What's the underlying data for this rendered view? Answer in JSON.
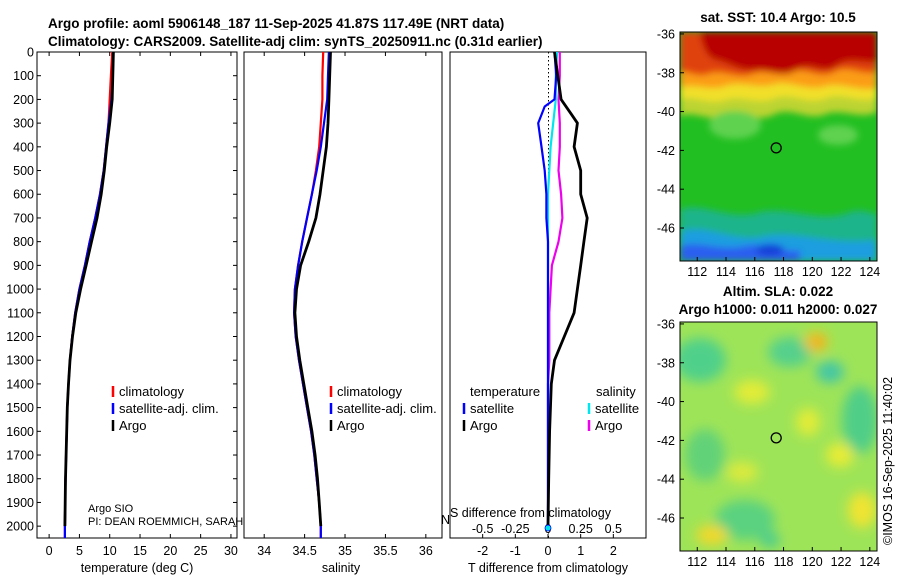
{
  "header": {
    "title_line1": "Argo profile: aoml 5906148_187 11-Sep-2025 41.87S 117.49E (NRT data)",
    "title_line2": "Climatology: CARS2009. Satellite-adj clim: synTS_20250911.nc (0.31d earlier)"
  },
  "colors": {
    "climatology": "#ff0000",
    "satellite_adj": "#0000ff",
    "argo": "#000000",
    "satellite_s": "#00e5ee",
    "argo_s": "#ee00ee"
  },
  "chart_data": [
    {
      "type": "line",
      "name": "temperature-profile",
      "xlabel": "temperature (deg C)",
      "ylabel": "",
      "xlim": [
        -2,
        31
      ],
      "ylim": [
        2050,
        0
      ],
      "xticks": [
        "0",
        "5",
        "10",
        "15",
        "20",
        "25",
        "30"
      ],
      "yticks": [
        "0",
        "100",
        "200",
        "300",
        "400",
        "500",
        "600",
        "700",
        "800",
        "900",
        "1000",
        "1100",
        "1200",
        "1300",
        "1400",
        "1500",
        "1600",
        "1700",
        "1800",
        "1900",
        "2000"
      ],
      "legend": [
        "climatology",
        "satellite-adj. clim.",
        "Argo"
      ],
      "legend_position": "lower-right",
      "series": [
        {
          "name": "climatology",
          "depth": [
            0,
            100,
            200,
            300,
            400,
            500,
            600,
            700,
            800,
            900,
            1000,
            1100,
            1200,
            1300,
            1400,
            1500,
            1600,
            1700,
            1800,
            1900,
            2000,
            2050
          ],
          "values": [
            10.4,
            10.2,
            10.0,
            9.8,
            9.4,
            9.0,
            8.4,
            7.6,
            6.7,
            5.9,
            5.0,
            4.3,
            3.8,
            3.45,
            3.2,
            3.0,
            2.9,
            2.8,
            2.7,
            2.65,
            2.6,
            2.6
          ]
        },
        {
          "name": "satellite-adj. clim.",
          "depth": [
            0,
            100,
            200,
            300,
            400,
            500,
            600,
            700,
            800,
            900,
            1000,
            1100,
            1200,
            1300,
            1400,
            1500,
            1600,
            1700,
            1800,
            1900,
            2000,
            2050
          ],
          "values": [
            10.6,
            10.5,
            10.3,
            9.8,
            9.4,
            9.0,
            8.4,
            7.6,
            6.7,
            5.9,
            5.0,
            4.3,
            3.8,
            3.45,
            3.2,
            3.0,
            2.9,
            2.8,
            2.7,
            2.65,
            2.6,
            2.6
          ]
        },
        {
          "name": "Argo",
          "depth": [
            0,
            100,
            200,
            300,
            400,
            500,
            600,
            700,
            800,
            900,
            1000,
            1100,
            1200,
            1300,
            1400,
            1500,
            1600,
            1700,
            1800,
            1900,
            2000
          ],
          "values": [
            10.6,
            10.5,
            10.4,
            10.0,
            9.5,
            9.1,
            8.6,
            7.9,
            7.0,
            6.1,
            5.2,
            4.4,
            3.85,
            3.45,
            3.2,
            3.0,
            2.9,
            2.8,
            2.7,
            2.65,
            2.6
          ]
        }
      ],
      "annotations": [
        "Argo SIO",
        "PI: DEAN ROEMMICH, SARAH"
      ]
    },
    {
      "type": "line",
      "name": "salinity-profile",
      "xlabel": "salinity",
      "ylabel": "",
      "xlim": [
        33.75,
        36.2
      ],
      "ylim": [
        2050,
        0
      ],
      "xticks": [
        "34",
        "34.5",
        "35",
        "35.5",
        "36"
      ],
      "legend": [
        "climatology",
        "satellite-adj. clim.",
        "Argo"
      ],
      "legend_position": "lower-right",
      "series": [
        {
          "name": "climatology",
          "depth": [
            0,
            100,
            200,
            300,
            400,
            500,
            600,
            700,
            800,
            900,
            1000,
            1100,
            1200,
            1300,
            1400,
            1500,
            1600,
            1700,
            1800,
            1900,
            2000,
            2050
          ],
          "values": [
            34.73,
            34.72,
            34.72,
            34.7,
            34.68,
            34.64,
            34.59,
            34.53,
            34.47,
            34.42,
            34.38,
            34.37,
            34.39,
            34.43,
            34.48,
            34.53,
            34.58,
            34.62,
            34.65,
            34.68,
            34.7,
            34.7
          ]
        },
        {
          "name": "satellite-adj. clim.",
          "depth": [
            0,
            100,
            200,
            300,
            400,
            500,
            600,
            700,
            800,
            900,
            1000,
            1100,
            1200,
            1300,
            1400,
            1500,
            1600,
            1700,
            1800,
            1900,
            2000,
            2050
          ],
          "values": [
            34.8,
            34.79,
            34.78,
            34.74,
            34.7,
            34.65,
            34.59,
            34.53,
            34.47,
            34.42,
            34.38,
            34.37,
            34.39,
            34.43,
            34.48,
            34.53,
            34.58,
            34.62,
            34.65,
            34.68,
            34.7,
            34.7
          ]
        },
        {
          "name": "Argo",
          "depth": [
            0,
            100,
            200,
            300,
            400,
            500,
            600,
            700,
            800,
            900,
            1000,
            1100,
            1200,
            1300,
            1400,
            1500,
            1600,
            1700,
            1800,
            1900,
            2000
          ],
          "values": [
            34.82,
            34.81,
            34.8,
            34.79,
            34.77,
            34.73,
            34.69,
            34.64,
            34.55,
            34.45,
            34.4,
            34.38,
            34.4,
            34.44,
            34.49,
            34.54,
            34.59,
            34.63,
            34.66,
            34.68,
            34.7
          ]
        }
      ]
    },
    {
      "type": "line",
      "name": "difference-profile",
      "xlabel": "T difference from climatology",
      "xlabel_top": "S difference from climatology",
      "xlim": [
        -3,
        3
      ],
      "ylim": [
        2050,
        0
      ],
      "xticks": [
        "-2",
        "-1",
        "0",
        "1",
        "2"
      ],
      "xticks_top": [
        "-0.5",
        "-0.25",
        "0",
        "0.25",
        "0.5"
      ],
      "legend_titles": [
        "temperature",
        "salinity"
      ],
      "legend": [
        "satellite",
        "Argo",
        "satellite",
        "Argo"
      ],
      "series": [
        {
          "name": "temperature satellite",
          "depth": [
            0,
            100,
            200,
            230,
            300,
            400,
            500,
            600,
            700,
            800,
            900,
            1000,
            1200,
            1400,
            1600,
            1800,
            2000
          ],
          "values": [
            0.2,
            0.25,
            0.2,
            -0.1,
            -0.3,
            -0.2,
            -0.1,
            -0.05,
            -0.05,
            0,
            0,
            0,
            0,
            0,
            0,
            0,
            0
          ]
        },
        {
          "name": "temperature Argo",
          "depth": [
            0,
            100,
            200,
            260,
            300,
            400,
            500,
            600,
            700,
            800,
            900,
            1000,
            1100,
            1200,
            1300,
            1400,
            1600,
            1800,
            2000
          ],
          "values": [
            0.2,
            0.3,
            0.4,
            0.7,
            0.9,
            0.8,
            1.0,
            1.0,
            1.2,
            1.1,
            1.0,
            0.9,
            0.8,
            0.5,
            0.2,
            0.1,
            0.05,
            0.02,
            0
          ]
        },
        {
          "name": "salinity satellite",
          "depth": [
            0,
            100,
            200,
            300,
            400,
            500,
            600,
            700,
            800,
            900,
            1000,
            1200,
            1400,
            1600,
            1800,
            2000
          ],
          "values": [
            0.07,
            0.06,
            0.06,
            0.04,
            0.02,
            0.01,
            0.0,
            0.0,
            0.0,
            0.0,
            0.0,
            0.0,
            0,
            0,
            0,
            0
          ]
        },
        {
          "name": "salinity Argo",
          "depth": [
            0,
            100,
            200,
            300,
            400,
            500,
            600,
            700,
            800,
            900,
            1000,
            1100,
            1200,
            1300,
            1400,
            1600,
            1800,
            2000
          ],
          "values": [
            0.09,
            0.09,
            0.08,
            0.09,
            0.09,
            0.08,
            0.1,
            0.11,
            0.08,
            0.03,
            0.02,
            0.01,
            0.01,
            0.01,
            0,
            0,
            0,
            0
          ]
        }
      ]
    },
    {
      "type": "heatmap",
      "name": "sst-map",
      "title": "sat. SST: 10.4 Argo: 10.5",
      "xlim": [
        110.8,
        124.5
      ],
      "ylim": [
        -47.7,
        -35.9
      ],
      "xticks": [
        "112",
        "114",
        "116",
        "118",
        "120",
        "122",
        "124"
      ],
      "yticks": [
        "-36",
        "-38",
        "-40",
        "-42",
        "-44",
        "-46"
      ],
      "marker": {
        "lon": 117.49,
        "lat": -41.87
      }
    },
    {
      "type": "heatmap",
      "name": "sla-map",
      "title_line1": "Altim. SLA: 0.022",
      "title_line2": "Argo h1000: 0.011 h2000: 0.027",
      "xlim": [
        110.8,
        124.5
      ],
      "ylim": [
        -47.7,
        -35.9
      ],
      "xticks": [
        "112",
        "114",
        "116",
        "118",
        "120",
        "122",
        "124"
      ],
      "yticks": [
        "-36",
        "-38",
        "-40",
        "-42",
        "-44",
        "-46"
      ],
      "marker": {
        "lon": 117.49,
        "lat": -41.87
      }
    }
  ],
  "footer": {
    "credit": "©IMOS 16-Sep-2025 11:40:02",
    "cut_label": "N"
  }
}
